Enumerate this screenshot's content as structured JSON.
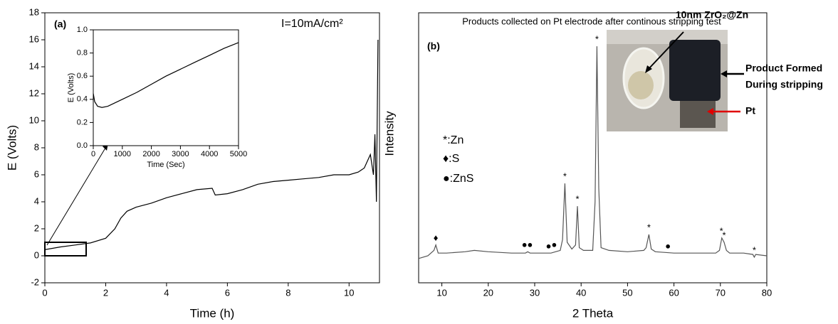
{
  "chart_data": [
    {
      "type": "line",
      "x_label": "Time (h)",
      "y_label": "E (Volts)",
      "panel_label": "(a)",
      "annotation": "I=10mA/cm²",
      "color": "#000000",
      "x": [
        0,
        0.5,
        1,
        1.5,
        2,
        2.3,
        2.5,
        2.7,
        3,
        3.5,
        4,
        4.5,
        5,
        5.5,
        5.6,
        6,
        6.5,
        7,
        7.5,
        8,
        8.5,
        9,
        9.5,
        10,
        10.3,
        10.5,
        10.7,
        10.8,
        10.85,
        10.9,
        10.95
      ],
      "values": [
        0.45,
        0.65,
        0.8,
        0.95,
        1.3,
        2.0,
        2.8,
        3.3,
        3.6,
        3.9,
        4.3,
        4.6,
        4.9,
        5.0,
        4.5,
        4.6,
        4.9,
        5.3,
        5.5,
        5.6,
        5.7,
        5.8,
        6.0,
        6.0,
        6.2,
        6.5,
        7.5,
        6.0,
        9.0,
        4.0,
        16.0
      ],
      "xlim": [
        0,
        11
      ],
      "xticks": [
        0,
        2,
        4,
        6,
        8,
        10
      ],
      "ylim": [
        -2,
        18
      ],
      "yticks": [
        -2,
        0,
        2,
        4,
        6,
        8,
        10,
        12,
        14,
        16,
        18
      ]
    },
    {
      "type": "line",
      "x_label": "Time (Sec)",
      "y_label": "E (Volts)",
      "color": "#000000",
      "x": [
        0,
        50,
        150,
        300,
        500,
        1000,
        1500,
        2000,
        2500,
        3000,
        3500,
        4000,
        4500,
        5000
      ],
      "values": [
        0.45,
        0.38,
        0.34,
        0.33,
        0.34,
        0.4,
        0.46,
        0.53,
        0.6,
        0.66,
        0.72,
        0.78,
        0.84,
        0.89
      ],
      "xlim": [
        0,
        5000
      ],
      "xticks": [
        0,
        1000,
        2000,
        3000,
        4000,
        5000
      ],
      "ylim": [
        0,
        1
      ],
      "yticks": [
        {
          "value": 0,
          "label": "0.0"
        },
        {
          "value": 0.2,
          "label": "0.2"
        },
        {
          "value": 0.4,
          "label": "0.4"
        },
        {
          "value": 0.6,
          "label": "0.6"
        },
        {
          "value": 0.8,
          "label": "0.8"
        },
        {
          "value": 1,
          "label": "1.0"
        }
      ]
    },
    {
      "type": "line",
      "title": "Products collected on Pt electrode after continous stripping test",
      "x_label": "2 Theta",
      "y_label": "Intensity",
      "panel_label": "(b)",
      "color": "#555555",
      "legend": [
        "*:Zn",
        "♦:S",
        "●:ZnS"
      ],
      "photo_labels": [
        "10nm ZrO₂@Zn",
        "Product Formed",
        "During stripping",
        "Pt"
      ],
      "x": [
        5,
        7,
        8.3,
        8.7,
        9.2,
        11,
        15,
        17,
        20,
        25,
        28,
        28.5,
        29,
        30,
        32,
        33.5,
        34.5,
        35.5,
        36,
        36.5,
        37,
        38,
        38.8,
        39.2,
        39.6,
        40.5,
        42.5,
        43,
        43.4,
        43.8,
        44.3,
        46,
        50,
        53.5,
        54,
        54.6,
        55.1,
        56,
        60,
        65,
        69,
        69.8,
        70.3,
        70.8,
        71.3,
        72,
        75,
        77,
        77.3,
        77.6,
        80
      ],
      "values": [
        9,
        10,
        12,
        14,
        11,
        11,
        11.5,
        12,
        11.5,
        11,
        11,
        11.5,
        11,
        11,
        11,
        11,
        11.5,
        12,
        16,
        36.8,
        15,
        12.5,
        14,
        28.4,
        13,
        12,
        12,
        30,
        87.6,
        35,
        13,
        12,
        11.5,
        12,
        13,
        17.9,
        12.5,
        11.5,
        11,
        11,
        11,
        12,
        16.6,
        15,
        12,
        11,
        11,
        10.5,
        9.5,
        10.5,
        10
      ],
      "markers": [
        {
          "x": 8.7,
          "y": 14,
          "label": "♦"
        },
        {
          "x": 27.8,
          "y": 11.5,
          "label": "●"
        },
        {
          "x": 29,
          "y": 11.5,
          "label": "●"
        },
        {
          "x": 33,
          "y": 11,
          "label": "●"
        },
        {
          "x": 34.2,
          "y": 11.5,
          "label": "●"
        },
        {
          "x": 36.5,
          "y": 36.8,
          "label": "*"
        },
        {
          "x": 39.2,
          "y": 28.4,
          "label": "*"
        },
        {
          "x": 43.4,
          "y": 87.6,
          "label": "*"
        },
        {
          "x": 54.6,
          "y": 17.9,
          "label": "*"
        },
        {
          "x": 58.7,
          "y": 11,
          "label": "●"
        },
        {
          "x": 70.2,
          "y": 16.6,
          "label": "*"
        },
        {
          "x": 70.8,
          "y": 15,
          "label": "*"
        },
        {
          "x": 77.3,
          "y": 9.5,
          "label": "*"
        }
      ],
      "xlim": [
        5,
        80
      ],
      "xticks": [
        10,
        20,
        30,
        40,
        50,
        60,
        70,
        80
      ],
      "ylim": [
        0,
        100
      ]
    }
  ]
}
